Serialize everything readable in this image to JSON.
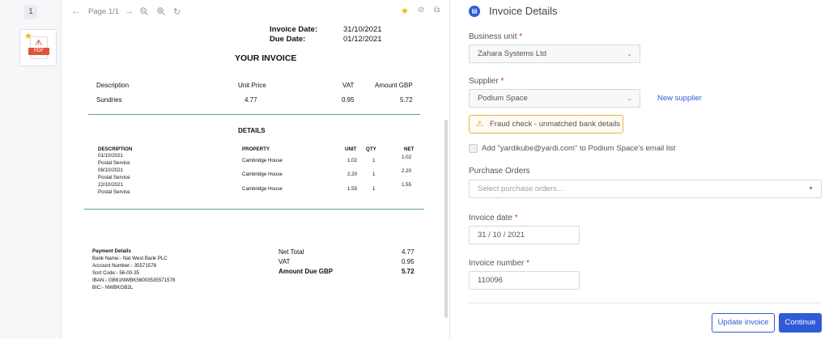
{
  "rail": {
    "page_number": "1",
    "thumb_badge": "PDF"
  },
  "toolbar": {
    "page_text": "Page 1/1"
  },
  "invoice": {
    "invoice_date_label": "Invoice Date:",
    "invoice_date": "31/10/2021",
    "due_date_label": "Due Date:",
    "due_date": "01/12/2021",
    "title": "YOUR INVOICE",
    "summary_headers": [
      "Description",
      "Unit Price",
      "VAT",
      "Amount GBP"
    ],
    "summary_row": [
      "Sundries",
      "4.77",
      "0.95",
      "5.72"
    ],
    "details_title": "DETAILS",
    "details_headers": [
      "DESCRIPTION",
      "PROPERTY",
      "UNIT",
      "QTY",
      "NET"
    ],
    "details_rows": [
      {
        "date": "01/10/2021",
        "service": "Postal Service",
        "property": "Cambridge House",
        "unit": "1.02",
        "qty": "1",
        "net": "1.02"
      },
      {
        "date": "08/10/2021",
        "service": "Postal Service",
        "property": "Cambridge House",
        "unit": "2.20",
        "qty": "1",
        "net": "2.20"
      },
      {
        "date": "22/10/2021",
        "service": "Postal Service",
        "property": "Cambridge House",
        "unit": "1.55",
        "qty": "1",
        "net": "1.55"
      }
    ],
    "payment_title": "Payment Details",
    "payment_lines": [
      "Bank Name:- Nat West Bank PLC",
      "Account Number:- 35571578",
      "Sort Code:- 56-00-35",
      "IBAN:- GB61NWBK56003535571578",
      "BIC:- NWBKGB2L"
    ],
    "totals": [
      {
        "label": "Net Total",
        "value": "4.77"
      },
      {
        "label": "VAT",
        "value": "0.95"
      },
      {
        "label": "Amount Due GBP",
        "value": "5.72"
      }
    ]
  },
  "panel": {
    "title": "Invoice Details",
    "business_unit_label": "Business unit",
    "business_unit_value": "Zahara Systems Ltd",
    "supplier_label": "Supplier",
    "supplier_value": "Podium Space",
    "new_supplier_link": "New supplier",
    "fraud_alert": "Fraud check - unmatched bank details",
    "email_checkbox_label": "Add \"yardikube@yardi.com\" to Podium Space's email list",
    "purchase_orders_label": "Purchase Orders",
    "purchase_orders_placeholder": "Select purchase orders...",
    "invoice_date_label": "Invoice date",
    "invoice_date_value": "31 / 10 / 2021",
    "invoice_number_label": "Invoice number",
    "invoice_number_value": "110096",
    "required_mark": "*",
    "update_button": "Update invoice",
    "continue_button": "Continue"
  },
  "colors": {
    "accent": "#2f5bd6",
    "warning": "#f0b04a",
    "required": "#d93025",
    "rule": "#5aa88a"
  },
  "icons": [
    "back-icon",
    "forward-icon",
    "zoom-out-icon",
    "zoom-in-icon",
    "rotate-icon",
    "star-icon",
    "block-icon",
    "open-external-icon",
    "document-icon",
    "warning-icon",
    "chevron-down-icon",
    "pdf-icon"
  ]
}
